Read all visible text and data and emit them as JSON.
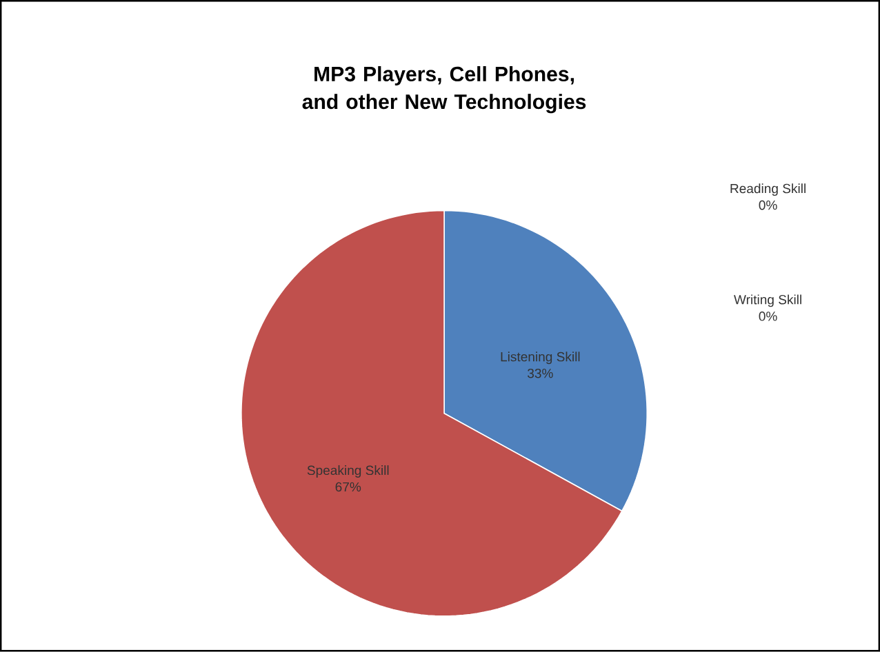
{
  "chart_data": {
    "type": "pie",
    "title": "MP3 Players, Cell Phones, and other New Technologies",
    "categories": [
      "Listening Skill",
      "Speaking Skill",
      "Reading Skill",
      "Writing Skill"
    ],
    "values": [
      33,
      67,
      0,
      0
    ],
    "value_labels": [
      "33%",
      "67%",
      "0%",
      "0%"
    ],
    "colors": [
      "#4f81bd",
      "#c0504d",
      "#9bbb59",
      "#8064a2"
    ]
  }
}
